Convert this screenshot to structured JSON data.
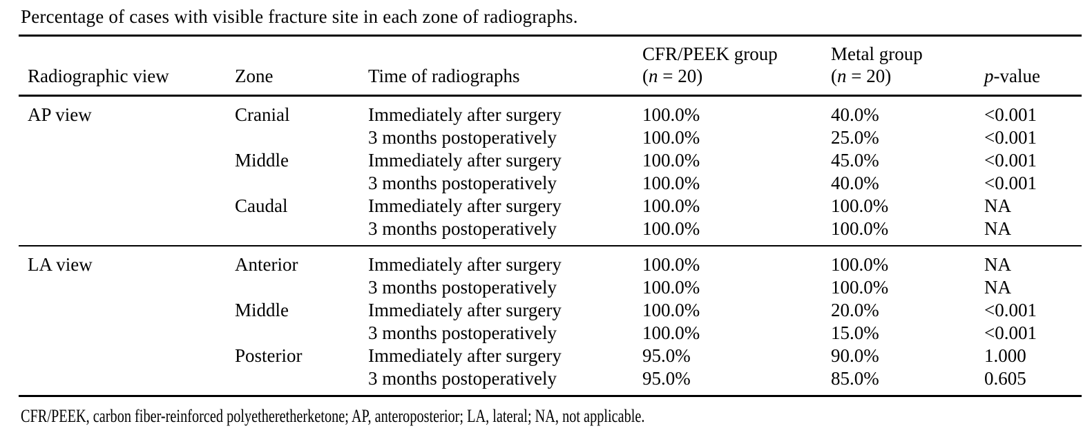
{
  "page": {
    "title": "Percentage of cases with visible fracture site in each zone of radiographs.",
    "footnote": "CFR/PEEK, carbon fiber-reinforced polyetheretherketone; AP, anteroposterior; LA, lateral; NA, not applicable."
  },
  "table": {
    "columns": [
      {
        "name": "radiographic-view",
        "lines": [
          [
            {
              "t": "Radiographic view"
            }
          ]
        ]
      },
      {
        "name": "zone",
        "lines": [
          [
            {
              "t": "Zone"
            }
          ]
        ]
      },
      {
        "name": "time-of-radiographs",
        "lines": [
          [
            {
              "t": "Time of radiographs"
            }
          ]
        ]
      },
      {
        "name": "cfrpeek-group",
        "lines": [
          [
            {
              "t": "CFR/PEEK group"
            }
          ],
          [
            {
              "t": "("
            },
            {
              "t": "n",
              "i": true
            },
            {
              "t": " = 20)"
            }
          ]
        ]
      },
      {
        "name": "metal-group",
        "lines": [
          [
            {
              "t": "Metal group"
            }
          ],
          [
            {
              "t": "("
            },
            {
              "t": "n",
              "i": true
            },
            {
              "t": " = 20)"
            }
          ]
        ]
      },
      {
        "name": "p-value",
        "lines": [
          [
            {
              "t": "p",
              "i": true
            },
            {
              "t": "-value"
            }
          ]
        ]
      }
    ],
    "sections": [
      {
        "view": "AP view",
        "rows": [
          {
            "zone": "Cranial",
            "time": "Immediately after surgery",
            "cfr": "100.0%",
            "metal": "40.0%",
            "p": "<0.001"
          },
          {
            "zone": "",
            "time": "3 months postoperatively",
            "cfr": "100.0%",
            "metal": "25.0%",
            "p": "<0.001"
          },
          {
            "zone": "Middle",
            "time": "Immediately after surgery",
            "cfr": "100.0%",
            "metal": "45.0%",
            "p": "<0.001"
          },
          {
            "zone": "",
            "time": "3 months postoperatively",
            "cfr": "100.0%",
            "metal": "40.0%",
            "p": "<0.001"
          },
          {
            "zone": "Caudal",
            "time": "Immediately after surgery",
            "cfr": "100.0%",
            "metal": "100.0%",
            "p": "NA"
          },
          {
            "zone": "",
            "time": "3 months postoperatively",
            "cfr": "100.0%",
            "metal": "100.0%",
            "p": "NA"
          }
        ]
      },
      {
        "view": "LA view",
        "rows": [
          {
            "zone": "Anterior",
            "time": "Immediately after surgery",
            "cfr": "100.0%",
            "metal": "100.0%",
            "p": "NA"
          },
          {
            "zone": "",
            "time": "3 months postoperatively",
            "cfr": "100.0%",
            "metal": "100.0%",
            "p": "NA"
          },
          {
            "zone": "Middle",
            "time": "Immediately after surgery",
            "cfr": "100.0%",
            "metal": "20.0%",
            "p": "<0.001"
          },
          {
            "zone": "",
            "time": "3 months postoperatively",
            "cfr": "100.0%",
            "metal": "15.0%",
            "p": "<0.001"
          },
          {
            "zone": "Posterior",
            "time": "Immediately after surgery",
            "cfr": "95.0%",
            "metal": "90.0%",
            "p": "1.000"
          },
          {
            "zone": "",
            "time": "3 months postoperatively",
            "cfr": "95.0%",
            "metal": "85.0%",
            "p": "0.605"
          }
        ]
      }
    ]
  }
}
